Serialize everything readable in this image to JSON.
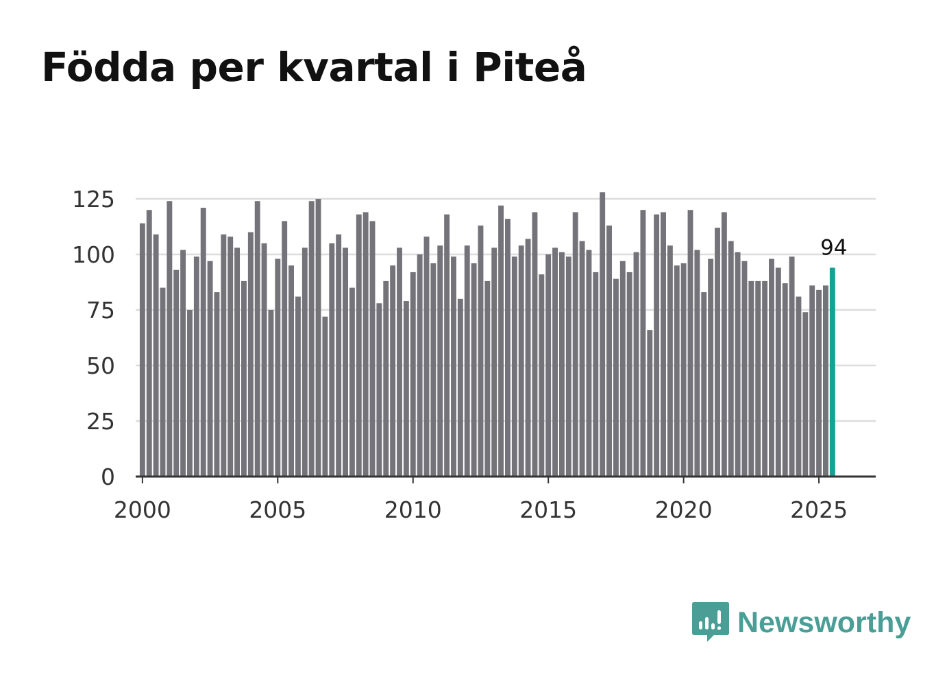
{
  "title": "Födda per kvartal i Piteå",
  "brand": {
    "name": "Newsworthy",
    "icon": "newsworthy-logo-icon",
    "color": "#4a9e96"
  },
  "colors": {
    "bar": "#747379",
    "highlight": "#15a193",
    "grid": "#dddddd",
    "axis": "#333333"
  },
  "chart_data": {
    "type": "bar",
    "title": "Födda per kvartal i Piteå",
    "xlabel": "",
    "ylabel": "",
    "ylim": [
      0,
      125
    ],
    "yticks": [
      0,
      25,
      50,
      75,
      100,
      125
    ],
    "x_range": [
      1999.75,
      2027.1
    ],
    "xticks": [
      2000,
      2005,
      2010,
      2015,
      2020,
      2025
    ],
    "grid": true,
    "start_year": 2000,
    "periods_per_year": 4,
    "values": [
      114,
      120,
      109,
      85,
      124,
      93,
      102,
      75,
      99,
      121,
      97,
      83,
      109,
      108,
      103,
      88,
      110,
      124,
      105,
      75,
      98,
      115,
      95,
      81,
      103,
      124,
      125,
      72,
      105,
      109,
      103,
      85,
      118,
      119,
      115,
      78,
      88,
      95,
      103,
      79,
      92,
      100,
      108,
      96,
      104,
      118,
      99,
      80,
      104,
      96,
      113,
      88,
      103,
      122,
      116,
      99,
      104,
      107,
      119,
      91,
      100,
      103,
      101,
      99,
      119,
      106,
      102,
      92,
      128,
      113,
      89,
      97,
      92,
      101,
      120,
      66,
      118,
      119,
      104,
      95,
      96,
      120,
      102,
      83,
      98,
      112,
      119,
      106,
      101,
      97,
      88,
      88,
      88,
      98,
      94,
      87,
      99,
      81,
      74,
      86,
      84,
      86,
      94
    ],
    "highlight": {
      "index": 102,
      "label": "94"
    }
  }
}
